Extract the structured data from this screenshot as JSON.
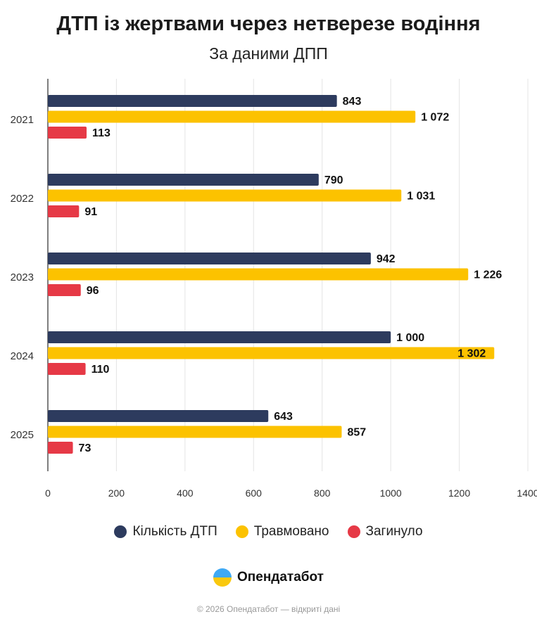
{
  "title": "ДТП із жертвами через нетверезе водіння",
  "subtitle": "За даними ДПП",
  "brand": "Опендатабот",
  "footer": "© 2026 Опендатабот — відкриті дані",
  "chart_data": {
    "type": "bar",
    "orientation": "horizontal",
    "categories": [
      "2021",
      "2022",
      "2023",
      "2024",
      "2025"
    ],
    "series": [
      {
        "name": "Кількість ДТП",
        "color": "#2d3b5e",
        "values": [
          843,
          790,
          942,
          1000,
          643
        ],
        "labels": [
          "843",
          "790",
          "942",
          "1 000",
          "643"
        ]
      },
      {
        "name": "Травмовано",
        "color": "#fcc200",
        "values": [
          1072,
          1031,
          1226,
          1302,
          857
        ],
        "labels": [
          "1 072",
          "1 031",
          "1 226",
          "1 302",
          "857"
        ]
      },
      {
        "name": "Загинуло",
        "color": "#e63946",
        "values": [
          113,
          91,
          96,
          110,
          73
        ],
        "labels": [
          "113",
          "91",
          "96",
          "110",
          "73"
        ]
      }
    ],
    "xlim": [
      0,
      1400
    ],
    "xticks": [
      "0",
      "200",
      "400",
      "600",
      "800",
      "1000",
      "1200",
      "1400"
    ],
    "grid": true,
    "legend": "bottom"
  }
}
